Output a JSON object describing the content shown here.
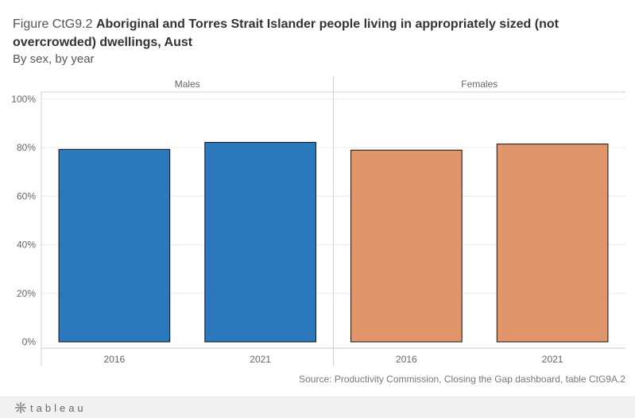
{
  "figure_prefix": "Figure CtG9.2",
  "chart_data": {
    "type": "bar",
    "title": "Aboriginal and Torres Strait Islander people living in appropriately sized (not overcrowded) dwellings, Aust",
    "subtitle": "By sex, by year",
    "panels": [
      {
        "name": "Males",
        "color": "#2b78bd",
        "categories": [
          "2016",
          "2021"
        ],
        "values": [
          79.3,
          82.2
        ]
      },
      {
        "name": "Females",
        "color": "#e0956b",
        "categories": [
          "2016",
          "2021"
        ],
        "values": [
          79.0,
          81.5
        ]
      }
    ],
    "yticks": [
      "0%",
      "20%",
      "40%",
      "60%",
      "80%",
      "100%"
    ],
    "ylim": [
      0,
      100
    ],
    "grid": true,
    "legend": "none"
  },
  "source": "Source: Productivity Commission, Closing the Gap dashboard, table CtG9A.2",
  "footer": {
    "logo_text": "tableau",
    "logo_icon": "tableau-logo-icon"
  }
}
